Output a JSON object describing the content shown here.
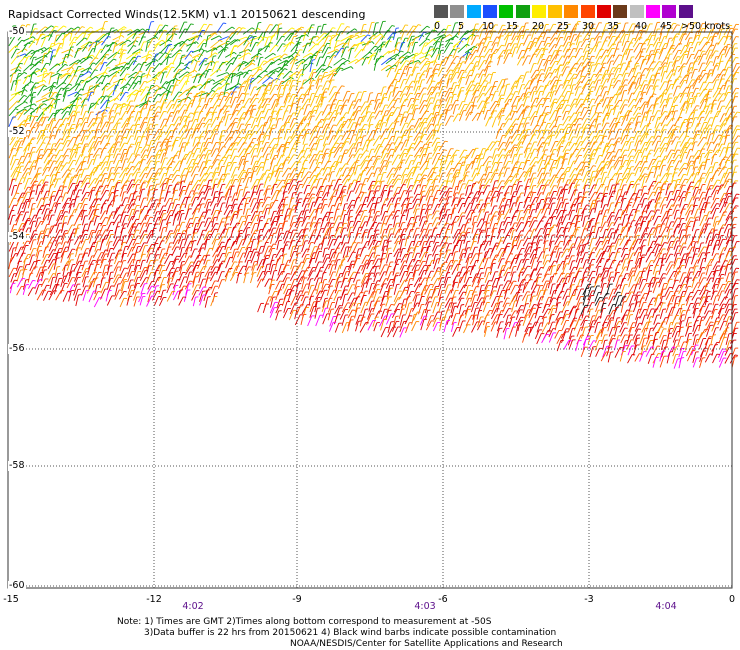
{
  "title": "Rapidsact Corrected Winds(12.5KM) v1.1 20150621 descending",
  "legend": {
    "colors": [
      "#555555",
      "#8f8f8f",
      "#00aaff",
      "#1a50ff",
      "#00c000",
      "#10a010",
      "#ffee00",
      "#ffc000",
      "#ff8800",
      "#ff4400",
      "#e00000",
      "#6b3a1a",
      "#c0c0c0",
      "#ff00ff",
      "#b000d0",
      "#5c0f8b"
    ],
    "labels": [
      "0",
      "5",
      "10",
      "15",
      "20",
      "25",
      "30",
      "35",
      "40",
      "45",
      ">50 knots"
    ]
  },
  "axes": {
    "lat_labels": [
      "-50",
      "-52",
      "-54",
      "-56",
      "-58",
      "-60"
    ],
    "lon_labels": [
      "-15",
      "-12",
      "-9",
      "-6",
      "-3",
      "0"
    ]
  },
  "times": [
    "4:02",
    "4:03",
    "4:04"
  ],
  "notes": [
    "Note: 1) Times are GMT 2)Times along bottom correspond to measurement at -50S",
    "3)Data buffer is 22 hrs from 20150621 4) Black wind barbs indicate possible contamination",
    "NOAA/NESDIS/Center for Satellite Applications and Research"
  ]
}
